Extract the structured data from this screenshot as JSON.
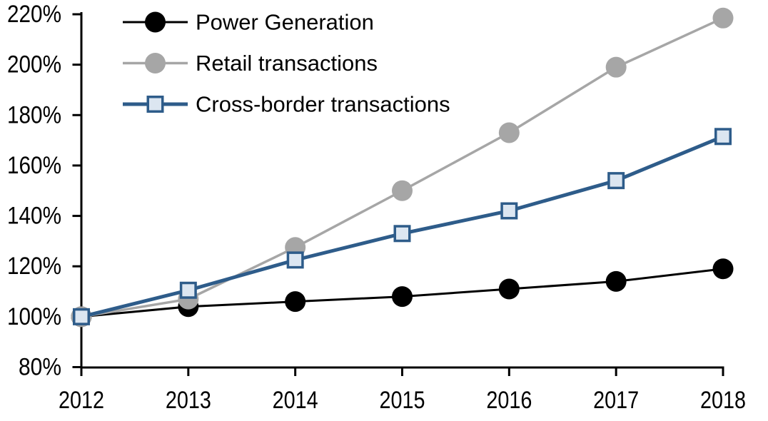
{
  "chart_data": {
    "type": "line",
    "x": [
      2012,
      2013,
      2014,
      2015,
      2016,
      2017,
      2018
    ],
    "x_tick_labels": [
      "2012",
      "2013",
      "2014",
      "2015",
      "2016",
      "2017",
      "2018"
    ],
    "y_tick_labels": [
      "80%",
      "100%",
      "120%",
      "140%",
      "160%",
      "180%",
      "200%",
      "220%"
    ],
    "ylim": [
      80,
      220
    ],
    "y_tick_step": 20,
    "grid": false,
    "legend_position": "top-left",
    "background": "#FFFFFF",
    "axis_color": "#000000",
    "series": [
      {
        "name": "Power Generation",
        "values": [
          100,
          104,
          106,
          108,
          111,
          114,
          119
        ],
        "color": "#000000",
        "marker": "circle",
        "marker_fill": "#000000",
        "line_width": 3
      },
      {
        "name": "Retail transactions",
        "values": [
          100,
          107,
          127.5,
          150,
          173,
          199,
          218.5
        ],
        "color": "#A6A6A6",
        "marker": "circle",
        "marker_fill": "#A6A6A6",
        "line_width": 3.5
      },
      {
        "name": "Cross-border transactions",
        "values": [
          100,
          110.5,
          122.5,
          133,
          142,
          154,
          171.5
        ],
        "color": "#2E5C8A",
        "marker": "square",
        "marker_fill": "#DCE6F1",
        "line_width": 5
      }
    ]
  }
}
